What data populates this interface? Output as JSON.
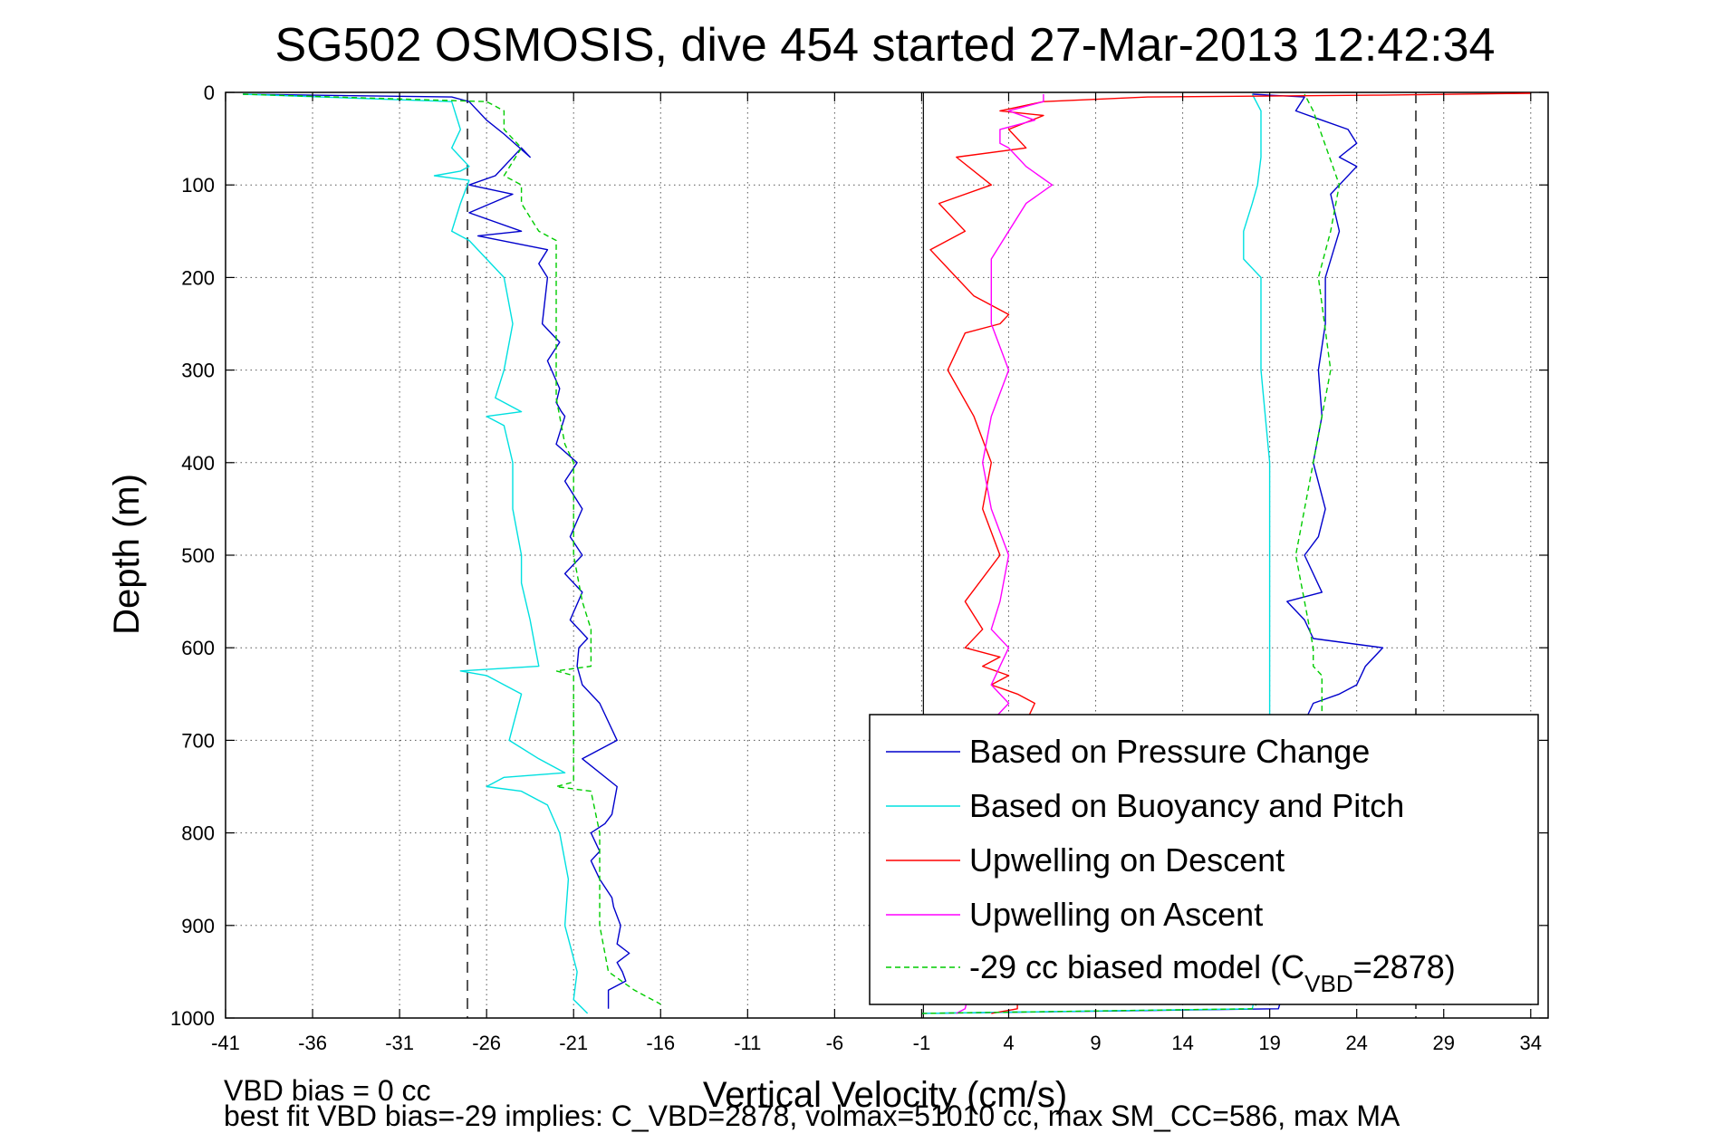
{
  "chart_data": {
    "type": "line",
    "title": "SG502 OSMOSIS, dive 454 started 27-Mar-2013 12:42:34",
    "xlabel": "Vertical Velocity (cm/s)",
    "ylabel": "Depth (m)",
    "xlim": [
      -41,
      35
    ],
    "ylim": [
      0,
      1000
    ],
    "y_reversed": true,
    "grid": true,
    "xticks": [
      -41,
      -36,
      -31,
      -26,
      -21,
      -16,
      -11,
      -6,
      -1,
      4,
      9,
      14,
      19,
      24,
      29,
      34
    ],
    "yticks": [
      0,
      100,
      200,
      300,
      400,
      500,
      600,
      700,
      800,
      900,
      1000
    ],
    "reference_lines": {
      "dashed_x": [
        -27.1,
        27.4
      ],
      "solid_x": [
        -0.9
      ]
    },
    "legend_position": "bottom-right",
    "footer": [
      "VBD bias = 0 cc",
      "best fit VBD bias=-29 implies: C_VBD=2878, volmax=51010 cc, max SM_CC=586, max MA"
    ],
    "series": [
      {
        "name": "Based on Pressure Change",
        "color": "#0000cc",
        "style": "solid",
        "segments": [
          {
            "x": [
              -40,
              -28,
              -27,
              -26,
              -25,
              -23.5,
              -24,
              -25.5,
              -27,
              -24.5,
              -27,
              -24,
              -26.5,
              -22.5,
              -23,
              -22.5,
              -22.8,
              -21.8,
              -22.5,
              -21.8,
              -22,
              -21.7,
              -21.5,
              -22,
              -20.8,
              -21.5,
              -20.5,
              -21.2,
              -20.5,
              -21.5,
              -20.5,
              -21.2,
              -20.2,
              -20.7,
              -20.8,
              -20.5,
              -19.5,
              -18.5,
              -20.5,
              -18.5,
              -18.8,
              -19.2,
              -20,
              -19.5,
              -20,
              -19.5,
              -18.8,
              -18.7,
              -18.3,
              -18.5,
              -17.8,
              -18.5,
              -18.2,
              -18,
              -19,
              -19
            ],
            "y": [
              2,
              5,
              10,
              30,
              45,
              70,
              60,
              90,
              100,
              110,
              130,
              150,
              155,
              170,
              185,
              200,
              250,
              270,
              290,
              320,
              335,
              345,
              350,
              380,
              400,
              420,
              450,
              480,
              500,
              520,
              540,
              570,
              590,
              600,
              620,
              640,
              660,
              700,
              720,
              750,
              780,
              790,
              800,
              820,
              830,
              850,
              870,
              880,
              900,
              920,
              930,
              940,
              950,
              960,
              970,
              990
            ]
          },
          {
            "x": [
              -1,
              19.5,
              20,
              21,
              21.5,
              23,
              24,
              24.5,
              25.5,
              21.5,
              21,
              20,
              22,
              21,
              21.8,
              22.2,
              21.5,
              22,
              21.8,
              22.2,
              22.2,
              23,
              22.5,
              24,
              23,
              24,
              23.5,
              22,
              20.5,
              21,
              18
            ],
            "y": [
              995,
              990,
              960,
              680,
              660,
              650,
              640,
              620,
              600,
              590,
              570,
              550,
              540,
              500,
              480,
              450,
              400,
              350,
              300,
              250,
              200,
              150,
              110,
              80,
              70,
              55,
              40,
              30,
              20,
              5,
              2
            ]
          }
        ]
      },
      {
        "name": "Based on Buoyancy and Pitch",
        "color": "#00e0e0",
        "style": "solid",
        "segments": [
          {
            "x": [
              -40,
              -28,
              -27.5,
              -28,
              -27,
              -27.5,
              -29,
              -27,
              -27.5,
              -28,
              -27,
              -26,
              -25,
              -24.5,
              -25,
              -25.5,
              -24.5,
              -24,
              -26,
              -25,
              -24.5,
              -24.5,
              -24,
              -24,
              -23.5,
              -23.2,
              -23,
              -27.5,
              -26,
              -24,
              -24.7,
              -23,
              -21.5,
              -25,
              -26,
              -24,
              -22.5,
              -21.8,
              -21.3,
              -21.5,
              -20.8,
              -21,
              -20.2
            ],
            "y": [
              2,
              10,
              40,
              60,
              80,
              85,
              90,
              95,
              120,
              150,
              160,
              180,
              200,
              250,
              300,
              330,
              340,
              345,
              350,
              360,
              400,
              450,
              500,
              530,
              570,
              600,
              620,
              625,
              630,
              650,
              700,
              720,
              735,
              740,
              750,
              755,
              770,
              800,
              850,
              900,
              950,
              980,
              995
            ]
          },
          {
            "x": [
              -1,
              18,
              19,
              19,
              19,
              19,
              19,
              19,
              18.5,
              18.5,
              18,
              17.5,
              17.5,
              18,
              18.3,
              18.5,
              18.5,
              18
            ],
            "y": [
              995,
              990,
              900,
              800,
              700,
              600,
              500,
              400,
              300,
              200,
              190,
              180,
              150,
              120,
              100,
              70,
              20,
              2
            ]
          }
        ]
      },
      {
        "name": "Upwelling on Descent",
        "color": "#ff0000",
        "style": "solid",
        "segments": [
          {
            "x": [
              34,
              25,
              12,
              6,
              3.5,
              6,
              4,
              5,
              1,
              3,
              0,
              1.5,
              -0.5,
              1,
              2,
              4,
              3.5,
              1.5,
              0.5,
              2,
              3,
              2.5,
              3.5,
              1.5,
              2.5,
              1.5,
              3.5,
              2.5,
              4,
              3,
              4.5,
              5.5,
              4.5,
              5,
              4,
              5,
              3.5,
              5,
              4.5,
              4.5,
              3
            ],
            "y": [
              1,
              3,
              5,
              10,
              20,
              25,
              40,
              60,
              70,
              100,
              120,
              150,
              170,
              200,
              220,
              240,
              250,
              260,
              300,
              350,
              400,
              450,
              500,
              550,
              580,
              600,
              610,
              620,
              630,
              640,
              650,
              660,
              700,
              750,
              800,
              850,
              900,
              950,
              980,
              990,
              995
            ]
          }
        ]
      },
      {
        "name": "Upwelling on Ascent",
        "color": "#ff00ff",
        "style": "solid",
        "segments": [
          {
            "x": [
              1,
              1.5,
              2,
              3.5,
              3,
              2.5,
              3,
              3.5,
              3,
              4,
              3,
              3.5,
              4,
              3,
              3.5,
              4,
              3,
              2.5,
              3,
              4,
              3,
              3,
              3,
              4,
              5,
              6.5,
              5,
              4.5,
              4,
              3.5,
              3.5,
              3.5,
              5.5,
              4,
              6,
              6
            ],
            "y": [
              995,
              990,
              950,
              900,
              850,
              800,
              750,
              700,
              680,
              660,
              640,
              620,
              600,
              580,
              550,
              500,
              450,
              400,
              350,
              300,
              250,
              200,
              180,
              150,
              120,
              100,
              80,
              70,
              60,
              55,
              50,
              40,
              30,
              20,
              10,
              2
            ]
          }
        ]
      },
      {
        "name": "-29 cc biased model (C_VBD=2878)",
        "color": "#00cc00",
        "style": "dashed",
        "segments": [
          {
            "x": [
              -40,
              -26,
              -25,
              -25,
              -24,
              -25,
              -24,
              -24,
              -23,
              -22,
              -22,
              -22,
              -22,
              -22,
              -22,
              -21.5,
              -21,
              -21,
              -21,
              -20.5,
              -20,
              -20,
              -20,
              -20,
              -22,
              -21,
              -21,
              -21,
              -22,
              -20,
              -19.5,
              -19.5,
              -19.5,
              -19,
              -17.5,
              -16
            ],
            "y": [
              2,
              10,
              20,
              40,
              60,
              90,
              100,
              120,
              150,
              160,
              165,
              170,
              250,
              300,
              330,
              380,
              400,
              450,
              500,
              550,
              580,
              600,
              610,
              620,
              625,
              630,
              700,
              745,
              750,
              755,
              800,
              850,
              900,
              950,
              970,
              985
            ]
          },
          {
            "x": [
              -1,
              18,
              20,
              21,
              21,
              21,
              22,
              22,
              22,
              21.5,
              21.5,
              21,
              20.5,
              21,
              21.5,
              22,
              22.5,
              21.8,
              22.5,
              23,
              21.5,
              21
            ],
            "y": [
              995,
              990,
              950,
              900,
              800,
              700,
              680,
              650,
              630,
              620,
              600,
              550,
              500,
              450,
              400,
              350,
              300,
              200,
              150,
              100,
              20,
              2
            ]
          }
        ]
      }
    ]
  }
}
